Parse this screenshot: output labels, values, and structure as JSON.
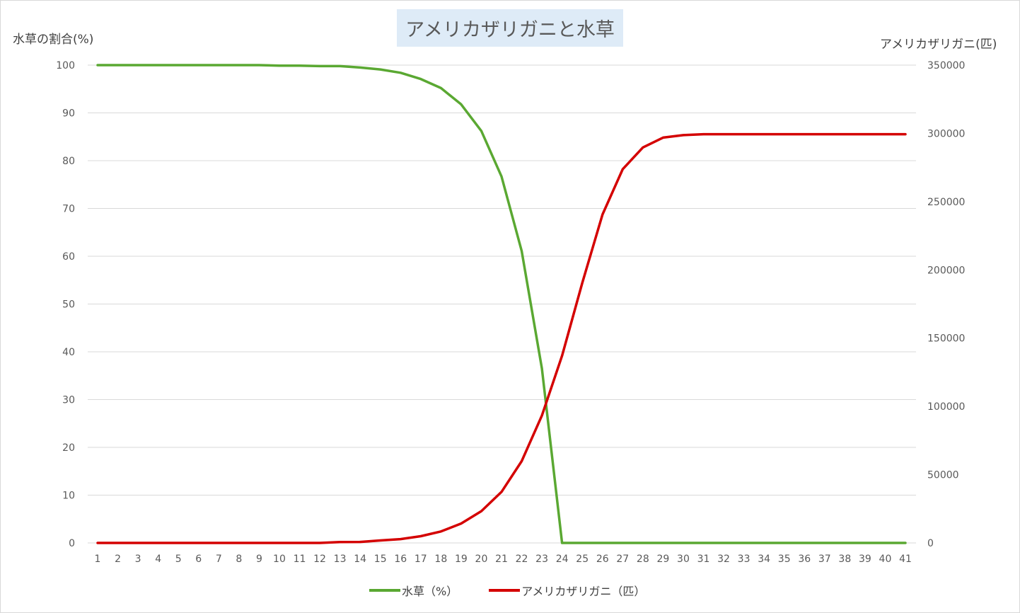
{
  "chart_data": {
    "type": "line",
    "title": "アメリカザリガニと水草",
    "y_left_label": "水草の割合(%)",
    "y_right_label": "アメリカザリガニ(匹)",
    "x": [
      1,
      2,
      3,
      4,
      5,
      6,
      7,
      8,
      9,
      10,
      11,
      12,
      13,
      14,
      15,
      16,
      17,
      18,
      19,
      20,
      21,
      22,
      23,
      24,
      25,
      26,
      27,
      28,
      29,
      30,
      31,
      32,
      33,
      34,
      35,
      36,
      37,
      38,
      39,
      40,
      41
    ],
    "y_left_ticks": [
      "0",
      "10",
      "20",
      "30",
      "40",
      "50",
      "60",
      "70",
      "80",
      "90",
      "100"
    ],
    "y_right_ticks": [
      "0",
      "50000",
      "100000",
      "150000",
      "200000",
      "250000",
      "300000",
      "350000"
    ],
    "ylim_left": [
      0,
      100
    ],
    "ylim_right": [
      0,
      350000
    ],
    "grid": "horizontal",
    "legend_position": "bottom",
    "series": [
      {
        "name": "水草（%）",
        "axis": "left",
        "color": "#5aa832",
        "values": [
          100,
          100,
          100,
          100,
          100,
          100,
          100,
          100,
          100,
          99.9,
          99.9,
          99.8,
          99.8,
          99.5,
          99.1,
          98.4,
          97.1,
          95.2,
          91.8,
          86.2,
          76.7,
          61.1,
          36.5,
          0,
          0,
          0,
          0,
          0,
          0,
          0,
          0,
          0,
          0,
          0,
          0,
          0,
          0,
          0,
          0,
          0,
          0
        ]
      },
      {
        "name": "アメリカザリガニ（匹）",
        "axis": "right",
        "color": "#d40000",
        "values": [
          0,
          0,
          0,
          0,
          0,
          0,
          0,
          0,
          0,
          0,
          0,
          0,
          600,
          700,
          1800,
          2800,
          4900,
          8400,
          14200,
          23300,
          37400,
          59900,
          93300,
          137100,
          190500,
          240600,
          273700,
          289700,
          296900,
          298700,
          299400,
          299400,
          299400,
          299400,
          299400,
          299400,
          299400,
          299400,
          299400,
          299400,
          299400
        ]
      }
    ]
  }
}
